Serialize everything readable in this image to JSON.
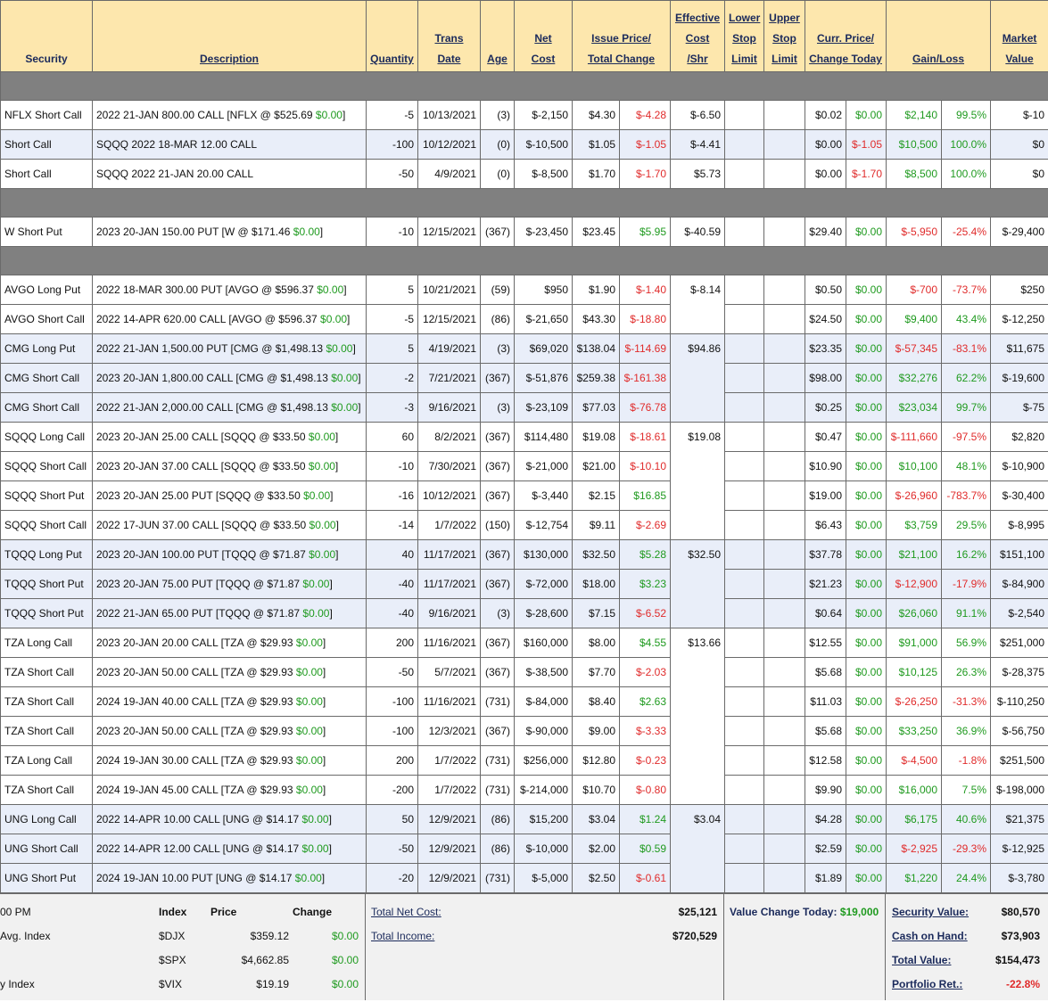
{
  "header": {
    "columns": [
      {
        "lines": [
          "Security"
        ]
      },
      {
        "lines": [
          "Description"
        ]
      },
      {
        "lines": [
          "Quantity"
        ]
      },
      {
        "lines": [
          "Trans",
          "Date"
        ]
      },
      {
        "lines": [
          "Age"
        ]
      },
      {
        "lines": [
          "Net",
          "Cost"
        ]
      },
      {
        "lines": [
          "Issue Price/",
          "Total Change"
        ]
      },
      {
        "lines": [
          "Effective",
          "Cost",
          "/Shr"
        ]
      },
      {
        "lines": [
          "Lower",
          "Stop",
          "Limit"
        ]
      },
      {
        "lines": [
          "Upper",
          "Stop",
          "Limit"
        ]
      },
      {
        "lines": [
          "Curr. Price/",
          "Change Today"
        ]
      },
      {
        "lines": [
          "Gain/Loss"
        ]
      },
      {
        "lines": [
          "Market",
          "Value"
        ]
      }
    ]
  },
  "sections": [
    {
      "rows": [
        {
          "security": "NFLX Short Call",
          "description": [
            "2022 21-JAN 800.00 CALL [NFLX @ $525.69",
            "$0.00",
            "]"
          ],
          "quantity": -5,
          "trans_date": "10/13/2021",
          "age": "(3)",
          "net_cost": "$-2,150",
          "issue_price": "$4.30",
          "total_change": "$-4.28",
          "eff_cost": "$-6.50",
          "curr_price": "$0.02",
          "change_today": "$0.00",
          "gain": "$2,140",
          "gain_pct": "99.5%",
          "market_value": "$-10"
        },
        {
          "security": "Short Call",
          "description": [
            "SQQQ 2022 18-MAR 12.00 CALL"
          ],
          "quantity": -100,
          "trans_date": "10/12/2021",
          "age": "(0)",
          "net_cost": "$-10,500",
          "issue_price": "$1.05",
          "total_change": "$-1.05",
          "eff_cost": "$-4.41",
          "curr_price": "$0.00",
          "change_today": "$-1.05",
          "gain": "$10,500",
          "gain_pct": "100.0%",
          "market_value": "$0",
          "shaded": true
        },
        {
          "security": "Short Call",
          "description": [
            "SQQQ 2022 21-JAN 20.00 CALL"
          ],
          "quantity": -50,
          "trans_date": "4/9/2021",
          "age": "(0)",
          "net_cost": "$-8,500",
          "issue_price": "$1.70",
          "total_change": "$-1.70",
          "eff_cost": "$5.73",
          "curr_price": "$0.00",
          "change_today": "$-1.70",
          "gain": "$8,500",
          "gain_pct": "100.0%",
          "market_value": "$0"
        }
      ]
    },
    {
      "rows": [
        {
          "security": "W Short Put",
          "description": [
            "2023 20-JAN 150.00 PUT [W @ $171.46",
            "$0.00",
            "]"
          ],
          "quantity": -10,
          "trans_date": "12/15/2021",
          "age": "(367)",
          "net_cost": "$-23,450",
          "issue_price": "$23.45",
          "total_change": "$5.95",
          "eff_cost": "$-40.59",
          "curr_price": "$29.40",
          "change_today": "$0.00",
          "gain": "$-5,950",
          "gain_pct": "-25.4%",
          "market_value": "$-29,400"
        }
      ]
    },
    {
      "rows": [
        {
          "security": "AVGO Long Put",
          "description": [
            "2022 18-MAR 300.00 PUT [AVGO @ $596.37",
            "$0.00",
            "]"
          ],
          "quantity": 5,
          "trans_date": "10/21/2021",
          "age": "(59)",
          "net_cost": "$950",
          "issue_price": "$1.90",
          "total_change": "$-1.40",
          "eff_cost": "$-8.14",
          "curr_price": "$0.50",
          "change_today": "$0.00",
          "gain": "$-700",
          "gain_pct": "-73.7%",
          "market_value": "$250"
        },
        {
          "security": "AVGO Short Call",
          "description": [
            "2022 14-APR 620.00 CALL [AVGO @ $596.37",
            "$0.00",
            "]"
          ],
          "quantity": -5,
          "trans_date": "12/15/2021",
          "age": "(86)",
          "net_cost": "$-21,650",
          "issue_price": "$43.30",
          "total_change": "$-18.80",
          "curr_price": "$24.50",
          "change_today": "$0.00",
          "gain": "$9,400",
          "gain_pct": "43.4%",
          "market_value": "$-12,250"
        },
        {
          "security": "CMG Long Put",
          "description": [
            "2022 21-JAN 1,500.00 PUT [CMG @ $1,498.13",
            "$0.00",
            "]"
          ],
          "quantity": 5,
          "trans_date": "4/19/2021",
          "age": "(3)",
          "net_cost": "$69,020",
          "issue_price": "$138.04",
          "total_change": "$-114.69",
          "eff_cost": "$94.86",
          "curr_price": "$23.35",
          "change_today": "$0.00",
          "gain": "$-57,345",
          "gain_pct": "-83.1%",
          "market_value": "$11,675",
          "shaded": true
        },
        {
          "security": "CMG Short Call",
          "description": [
            "2023 20-JAN 1,800.00 CALL [CMG @ $1,498.13",
            "$0.00",
            "]"
          ],
          "quantity": -2,
          "trans_date": "7/21/2021",
          "age": "(367)",
          "net_cost": "$-51,876",
          "issue_price": "$259.38",
          "total_change": "$-161.38",
          "curr_price": "$98.00",
          "change_today": "$0.00",
          "gain": "$32,276",
          "gain_pct": "62.2%",
          "market_value": "$-19,600",
          "shaded": true
        },
        {
          "security": "CMG Short Call",
          "description": [
            "2022 21-JAN 2,000.00 CALL [CMG @ $1,498.13",
            "$0.00",
            "]"
          ],
          "quantity": -3,
          "trans_date": "9/16/2021",
          "age": "(3)",
          "net_cost": "$-23,109",
          "issue_price": "$77.03",
          "total_change": "$-76.78",
          "curr_price": "$0.25",
          "change_today": "$0.00",
          "gain": "$23,034",
          "gain_pct": "99.7%",
          "market_value": "$-75",
          "shaded": true
        },
        {
          "security": "SQQQ Long Call",
          "description": [
            "2023 20-JAN 25.00 CALL [SQQQ @ $33.50",
            "$0.00",
            "]"
          ],
          "quantity": 60,
          "trans_date": "8/2/2021",
          "age": "(367)",
          "net_cost": "$114,480",
          "issue_price": "$19.08",
          "total_change": "$-18.61",
          "eff_cost": "$19.08",
          "curr_price": "$0.47",
          "change_today": "$0.00",
          "gain": "$-111,660",
          "gain_pct": "-97.5%",
          "market_value": "$2,820"
        },
        {
          "security": "SQQQ Short Call",
          "description": [
            "2023 20-JAN 37.00 CALL [SQQQ @ $33.50",
            "$0.00",
            "]"
          ],
          "quantity": -10,
          "trans_date": "7/30/2021",
          "age": "(367)",
          "net_cost": "$-21,000",
          "issue_price": "$21.00",
          "total_change": "$-10.10",
          "curr_price": "$10.90",
          "change_today": "$0.00",
          "gain": "$10,100",
          "gain_pct": "48.1%",
          "market_value": "$-10,900"
        },
        {
          "security": "SQQQ Short Put",
          "description": [
            "2023 20-JAN 25.00 PUT [SQQQ @ $33.50",
            "$0.00",
            "]"
          ],
          "quantity": -16,
          "trans_date": "10/12/2021",
          "age": "(367)",
          "net_cost": "$-3,440",
          "issue_price": "$2.15",
          "total_change": "$16.85",
          "curr_price": "$19.00",
          "change_today": "$0.00",
          "gain": "$-26,960",
          "gain_pct": "-783.7%",
          "market_value": "$-30,400"
        },
        {
          "security": "SQQQ Short Call",
          "description": [
            "2022 17-JUN 37.00 CALL [SQQQ @ $33.50",
            "$0.00",
            "]"
          ],
          "quantity": -14,
          "trans_date": "1/7/2022",
          "age": "(150)",
          "net_cost": "$-12,754",
          "issue_price": "$9.11",
          "total_change": "$-2.69",
          "curr_price": "$6.43",
          "change_today": "$0.00",
          "gain": "$3,759",
          "gain_pct": "29.5%",
          "market_value": "$-8,995"
        },
        {
          "security": "TQQQ Long Put",
          "description": [
            "2023 20-JAN 100.00 PUT [TQQQ @ $71.87",
            "$0.00",
            "]"
          ],
          "quantity": 40,
          "trans_date": "11/17/2021",
          "age": "(367)",
          "net_cost": "$130,000",
          "issue_price": "$32.50",
          "total_change": "$5.28",
          "eff_cost": "$32.50",
          "curr_price": "$37.78",
          "change_today": "$0.00",
          "gain": "$21,100",
          "gain_pct": "16.2%",
          "market_value": "$151,100",
          "shaded": true
        },
        {
          "security": "TQQQ Short Put",
          "description": [
            "2023 20-JAN 75.00 PUT [TQQQ @ $71.87",
            "$0.00",
            "]"
          ],
          "quantity": -40,
          "trans_date": "11/17/2021",
          "age": "(367)",
          "net_cost": "$-72,000",
          "issue_price": "$18.00",
          "total_change": "$3.23",
          "curr_price": "$21.23",
          "change_today": "$0.00",
          "gain": "$-12,900",
          "gain_pct": "-17.9%",
          "market_value": "$-84,900",
          "shaded": true
        },
        {
          "security": "TQQQ Short Put",
          "description": [
            "2022 21-JAN 65.00 PUT [TQQQ @ $71.87",
            "$0.00",
            "]"
          ],
          "quantity": -40,
          "trans_date": "9/16/2021",
          "age": "(3)",
          "net_cost": "$-28,600",
          "issue_price": "$7.15",
          "total_change": "$-6.52",
          "curr_price": "$0.64",
          "change_today": "$0.00",
          "gain": "$26,060",
          "gain_pct": "91.1%",
          "market_value": "$-2,540",
          "shaded": true
        },
        {
          "security": "TZA Long Call",
          "description": [
            "2023 20-JAN 20.00 CALL [TZA @ $29.93",
            "$0.00",
            "]"
          ],
          "quantity": 200,
          "trans_date": "11/16/2021",
          "age": "(367)",
          "net_cost": "$160,000",
          "issue_price": "$8.00",
          "total_change": "$4.55",
          "eff_cost": "$13.66",
          "curr_price": "$12.55",
          "change_today": "$0.00",
          "gain": "$91,000",
          "gain_pct": "56.9%",
          "market_value": "$251,000"
        },
        {
          "security": "TZA Short Call",
          "description": [
            "2023 20-JAN 50.00 CALL [TZA @ $29.93",
            "$0.00",
            "]"
          ],
          "quantity": -50,
          "trans_date": "5/7/2021",
          "age": "(367)",
          "net_cost": "$-38,500",
          "issue_price": "$7.70",
          "total_change": "$-2.03",
          "curr_price": "$5.68",
          "change_today": "$0.00",
          "gain": "$10,125",
          "gain_pct": "26.3%",
          "market_value": "$-28,375"
        },
        {
          "security": "TZA Short Call",
          "description": [
            "2024 19-JAN 40.00 CALL [TZA @ $29.93",
            "$0.00",
            "]"
          ],
          "quantity": -100,
          "trans_date": "11/16/2021",
          "age": "(731)",
          "net_cost": "$-84,000",
          "issue_price": "$8.40",
          "total_change": "$2.63",
          "curr_price": "$11.03",
          "change_today": "$0.00",
          "gain": "$-26,250",
          "gain_pct": "-31.3%",
          "market_value": "$-110,250"
        },
        {
          "security": "TZA Short Call",
          "description": [
            "2023 20-JAN 50.00 CALL [TZA @ $29.93",
            "$0.00",
            "]"
          ],
          "quantity": -100,
          "trans_date": "12/3/2021",
          "age": "(367)",
          "net_cost": "$-90,000",
          "issue_price": "$9.00",
          "total_change": "$-3.33",
          "curr_price": "$5.68",
          "change_today": "$0.00",
          "gain": "$33,250",
          "gain_pct": "36.9%",
          "market_value": "$-56,750"
        },
        {
          "security": "TZA Long Call",
          "description": [
            "2024 19-JAN 30.00 CALL [TZA @ $29.93",
            "$0.00",
            "]"
          ],
          "quantity": 200,
          "trans_date": "1/7/2022",
          "age": "(731)",
          "net_cost": "$256,000",
          "issue_price": "$12.80",
          "total_change": "$-0.23",
          "curr_price": "$12.58",
          "change_today": "$0.00",
          "gain": "$-4,500",
          "gain_pct": "-1.8%",
          "market_value": "$251,500"
        },
        {
          "security": "TZA Short Call",
          "description": [
            "2024 19-JAN 45.00 CALL [TZA @ $29.93",
            "$0.00",
            "]"
          ],
          "quantity": -200,
          "trans_date": "1/7/2022",
          "age": "(731)",
          "net_cost": "$-214,000",
          "issue_price": "$10.70",
          "total_change": "$-0.80",
          "curr_price": "$9.90",
          "change_today": "$0.00",
          "gain": "$16,000",
          "gain_pct": "7.5%",
          "market_value": "$-198,000"
        },
        {
          "security": "UNG Long Call",
          "description": [
            "2022 14-APR 10.00 CALL [UNG @ $14.17",
            "$0.00",
            "]"
          ],
          "quantity": 50,
          "trans_date": "12/9/2021",
          "age": "(86)",
          "net_cost": "$15,200",
          "issue_price": "$3.04",
          "total_change": "$1.24",
          "eff_cost": "$3.04",
          "curr_price": "$4.28",
          "change_today": "$0.00",
          "gain": "$6,175",
          "gain_pct": "40.6%",
          "market_value": "$21,375",
          "shaded": true
        },
        {
          "security": "UNG Short Call",
          "description": [
            "2022 14-APR 12.00 CALL [UNG @ $14.17",
            "$0.00",
            "]"
          ],
          "quantity": -50,
          "trans_date": "12/9/2021",
          "age": "(86)",
          "net_cost": "$-10,000",
          "issue_price": "$2.00",
          "total_change": "$0.59",
          "curr_price": "$2.59",
          "change_today": "$0.00",
          "gain": "$-2,925",
          "gain_pct": "-29.3%",
          "market_value": "$-12,925",
          "shaded": true
        },
        {
          "security": "UNG Short Put",
          "description": [
            "2024 19-JAN 10.00 PUT [UNG @ $14.17",
            "$0.00",
            "]"
          ],
          "quantity": -20,
          "trans_date": "12/9/2021",
          "age": "(731)",
          "net_cost": "$-5,000",
          "issue_price": "$2.50",
          "total_change": "$-0.61",
          "curr_price": "$1.89",
          "change_today": "$0.00",
          "gain": "$1,220",
          "gain_pct": "24.4%",
          "market_value": "$-3,780",
          "shaded": true
        }
      ]
    }
  ],
  "footer": {
    "index_table": {
      "time": "00 PM",
      "header": [
        "Index",
        "Price",
        "Change"
      ],
      "rows": [
        {
          "name": "Avg. Index",
          "symbol": "$DJX",
          "price": "$359.12",
          "change": "$0.00"
        },
        {
          "symbol": "$SPX",
          "price": "$4,662.85",
          "change": "$0.00"
        },
        {
          "name": "y Index",
          "symbol": "$VIX",
          "price": "$19.19",
          "change": "$0.00"
        }
      ]
    },
    "totals": [
      {
        "label": "Total Net Cost:",
        "value": "$25,121"
      },
      {
        "label": "Total Income:",
        "value": "$720,529"
      }
    ],
    "value_change": {
      "label": "Value Change Today:",
      "value": "$19,000"
    },
    "summary": [
      {
        "label": "Security Value:",
        "value": "$80,570"
      },
      {
        "label": "Cash on Hand:",
        "value": "$73,903"
      },
      {
        "label": "Total Value:",
        "value": "$154,473"
      },
      {
        "label": "Portfolio Ret.:",
        "value": "-22.8%"
      }
    ]
  }
}
